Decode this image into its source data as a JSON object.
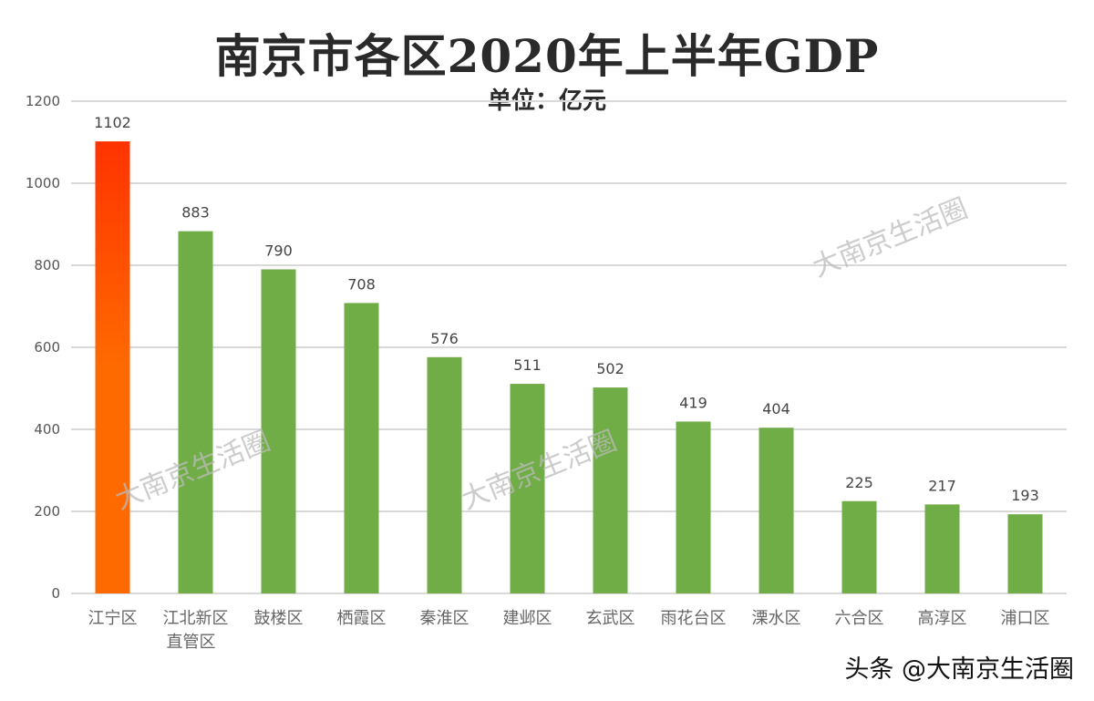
{
  "chart_data": {
    "type": "bar",
    "title": "南京市各区2020年上半年GDP",
    "subtitle": "单位：亿元",
    "categories": [
      "江宁区",
      "江北新区\n直管区",
      "鼓楼区",
      "栖霞区",
      "秦淮区",
      "建邺区",
      "玄武区",
      "雨花台区",
      "溧水区",
      "六合区",
      "高淳区",
      "浦口区"
    ],
    "values": [
      1102,
      883,
      790,
      708,
      576,
      511,
      502,
      419,
      404,
      225,
      217,
      193
    ],
    "ylim": [
      0,
      1200
    ],
    "yticks": [
      0,
      200,
      400,
      600,
      800,
      1000,
      1200
    ],
    "grid": true,
    "data_labels": true,
    "colors": {
      "highlight_top": "#ff3300",
      "highlight_bottom": "#ff6a00",
      "bar": "#70ad47",
      "grid": "#d9d9d9"
    }
  },
  "watermark": "大南京生活圈",
  "footer": "头条 @大南京生活圈"
}
